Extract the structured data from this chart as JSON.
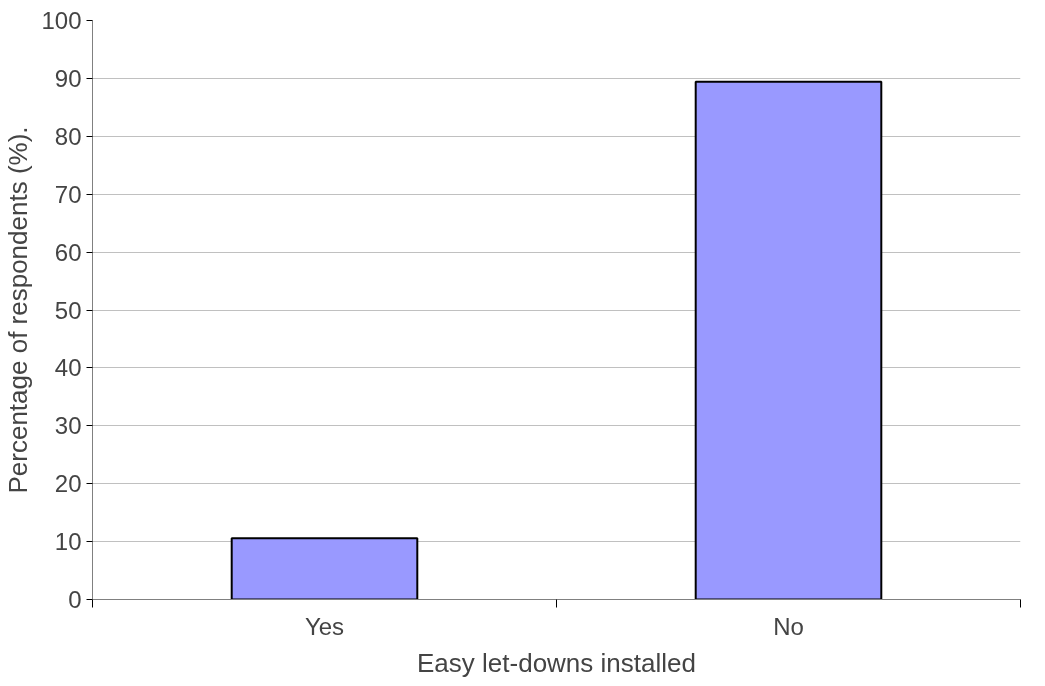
{
  "chart_data": {
    "type": "bar",
    "xlabel": "Easy let-downs installed",
    "ylabel": "Percentage of respondents (%).",
    "categories": [
      "Yes",
      "No"
    ],
    "series": [
      {
        "color": "#9999ff",
        "values": [
          10.6,
          89.4
        ]
      }
    ],
    "ylim": [
      0,
      100
    ],
    "yticks": [
      0,
      10,
      20,
      30,
      40,
      50,
      60,
      70,
      80,
      90,
      100
    ],
    "grid": "y"
  }
}
